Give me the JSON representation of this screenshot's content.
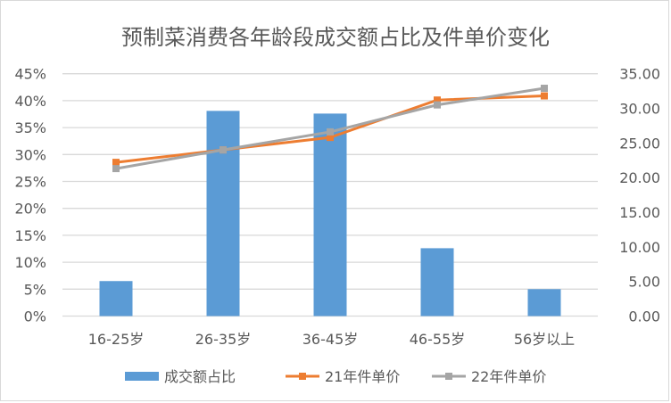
{
  "chart_data": {
    "type": "bar+line",
    "title": "预制菜消费各年龄段成交额占比及件单价变化",
    "categories": [
      "16-25岁",
      "26-35岁",
      "36-45岁",
      "46-55岁",
      "56岁以上"
    ],
    "y_left": {
      "range": [
        0,
        45
      ],
      "ticks": [
        "0%",
        "5%",
        "10%",
        "15%",
        "20%",
        "25%",
        "30%",
        "35%",
        "40%",
        "45%"
      ]
    },
    "y_right": {
      "range": [
        0,
        35
      ],
      "ticks": [
        "0.00",
        "5.00",
        "10.00",
        "15.00",
        "20.00",
        "25.00",
        "30.00",
        "35.00"
      ]
    },
    "grid": true,
    "legend_position": "bottom",
    "series": [
      {
        "name": "成交额占比",
        "type": "bar",
        "axis": "left",
        "unit": "%",
        "color": "#5b9bd5",
        "values": [
          6.5,
          38.1,
          37.6,
          12.6,
          5.0
        ]
      },
      {
        "name": "21年件单价",
        "type": "line",
        "axis": "right",
        "color": "#ed7d31",
        "values": [
          22.2,
          24.0,
          25.8,
          31.2,
          31.8
        ]
      },
      {
        "name": "22年件单价",
        "type": "line",
        "axis": "right",
        "color": "#a5a5a5",
        "values": [
          21.3,
          24.0,
          26.6,
          30.5,
          32.9
        ]
      }
    ]
  }
}
